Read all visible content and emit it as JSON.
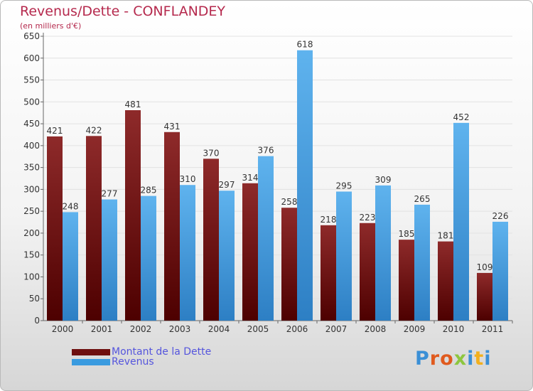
{
  "chart_data": {
    "type": "bar",
    "title": "Revenus/Dette - CONFLANDEY",
    "subtitle": "(en milliers d'€)",
    "categories": [
      "2000",
      "2001",
      "2002",
      "2003",
      "2004",
      "2005",
      "2006",
      "2007",
      "2008",
      "2009",
      "2010",
      "2011"
    ],
    "series": [
      {
        "name": "Montant de la Dette",
        "color": "#7a1414",
        "values": [
          421,
          422,
          481,
          431,
          370,
          314,
          258,
          218,
          223,
          185,
          181,
          109
        ]
      },
      {
        "name": "Revenus",
        "color": "#3a9be0",
        "values": [
          248,
          277,
          285,
          310,
          297,
          376,
          618,
          295,
          309,
          265,
          452,
          226
        ]
      }
    ],
    "ylim": [
      0,
      650
    ],
    "yticks": [
      0,
      50,
      100,
      150,
      200,
      250,
      300,
      350,
      400,
      450,
      500,
      550,
      600,
      650
    ],
    "grid": true,
    "legend_position": "bottom-left"
  },
  "logo": {
    "letters": [
      {
        "ch": "P",
        "color": "#3a8fd6"
      },
      {
        "ch": "r",
        "color": "#e05a1e"
      },
      {
        "ch": "o",
        "color": "#e05a1e"
      },
      {
        "ch": "x",
        "color": "#8dc63f"
      },
      {
        "ch": "i",
        "color": "#3a8fd6"
      },
      {
        "ch": "t",
        "color": "#f2b01e"
      },
      {
        "ch": "i",
        "color": "#3a8fd6"
      }
    ]
  }
}
